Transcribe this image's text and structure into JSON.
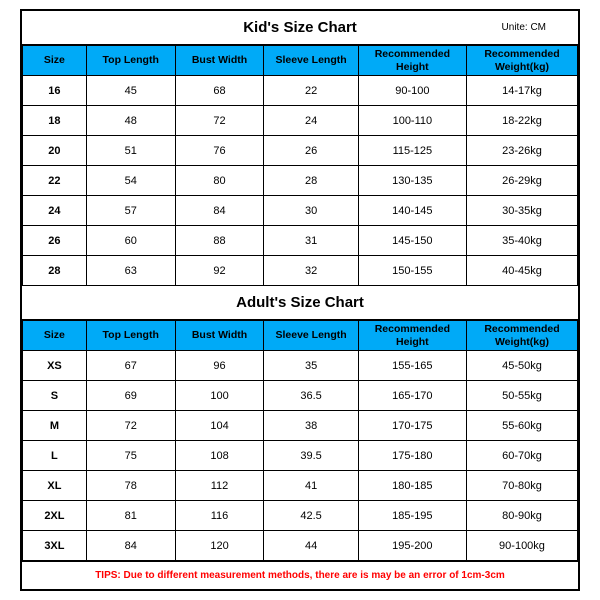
{
  "kids": {
    "title": "Kid's Size Chart",
    "unit": "Unite: CM",
    "columns": [
      "Size",
      "Top Length",
      "Bust Width",
      "Sleeve Length",
      "Recommended Height",
      "Recommended Weight(kg)"
    ],
    "rows": [
      [
        "16",
        "45",
        "68",
        "22",
        "90-100",
        "14-17kg"
      ],
      [
        "18",
        "48",
        "72",
        "24",
        "100-110",
        "18-22kg"
      ],
      [
        "20",
        "51",
        "76",
        "26",
        "115-125",
        "23-26kg"
      ],
      [
        "22",
        "54",
        "80",
        "28",
        "130-135",
        "26-29kg"
      ],
      [
        "24",
        "57",
        "84",
        "30",
        "140-145",
        "30-35kg"
      ],
      [
        "26",
        "60",
        "88",
        "31",
        "145-150",
        "35-40kg"
      ],
      [
        "28",
        "63",
        "92",
        "32",
        "150-155",
        "40-45kg"
      ]
    ]
  },
  "adults": {
    "title": "Adult's Size Chart",
    "columns": [
      "Size",
      "Top Length",
      "Bust Width",
      "Sleeve Length",
      "Recommended Height",
      "Recommended Weight(kg)"
    ],
    "rows": [
      [
        "XS",
        "67",
        "96",
        "35",
        "155-165",
        "45-50kg"
      ],
      [
        "S",
        "69",
        "100",
        "36.5",
        "165-170",
        "50-55kg"
      ],
      [
        "M",
        "72",
        "104",
        "38",
        "170-175",
        "55-60kg"
      ],
      [
        "L",
        "75",
        "108",
        "39.5",
        "175-180",
        "60-70kg"
      ],
      [
        "XL",
        "78",
        "112",
        "41",
        "180-185",
        "70-80kg"
      ],
      [
        "2XL",
        "81",
        "116",
        "42.5",
        "185-195",
        "80-90kg"
      ],
      [
        "3XL",
        "84",
        "120",
        "44",
        "195-200",
        "90-100kg"
      ]
    ]
  },
  "tips": "TIPS: Due to different measurement methods, there are is may be an error of 1cm-3cm",
  "style": {
    "header_bg": "#00aaf7",
    "border_color": "#000000",
    "tips_color": "#ff0000",
    "background": "#ffffff",
    "font_family": "Arial, sans-serif",
    "title_fontsize": 15,
    "header_fontsize": 10.5,
    "cell_fontsize": 11,
    "tips_fontsize": 10,
    "col_widths_pct": [
      11.5,
      16,
      16,
      17,
      19.5,
      20
    ]
  }
}
